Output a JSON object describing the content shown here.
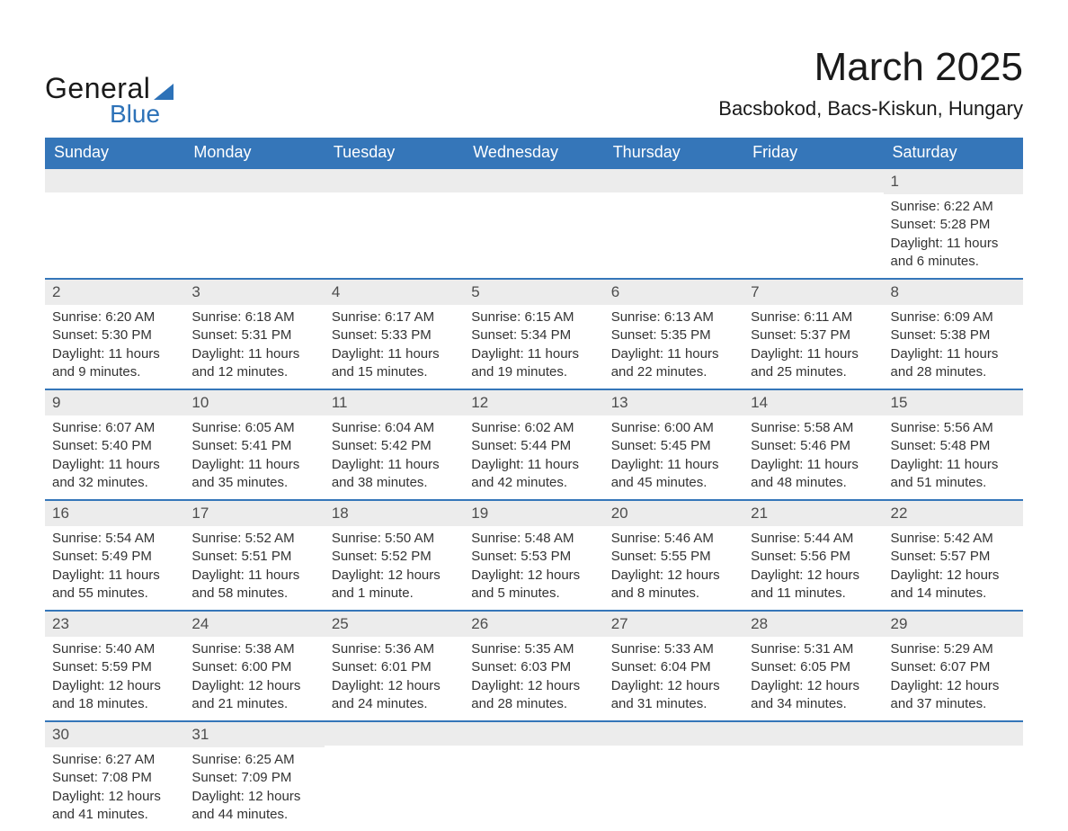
{
  "brand": {
    "word1": "General",
    "word2": "Blue",
    "accent_color": "#2d72b8"
  },
  "header": {
    "title": "March 2025",
    "subtitle": "Bacsbokod, Bacs-Kiskun, Hungary"
  },
  "colors": {
    "header_bg": "#3576b9",
    "header_text": "#ffffff",
    "daynum_bg": "#ececec",
    "row_divider": "#3576b9",
    "body_text": "#333333",
    "page_bg": "#ffffff"
  },
  "weekdays": [
    "Sunday",
    "Monday",
    "Tuesday",
    "Wednesday",
    "Thursday",
    "Friday",
    "Saturday"
  ],
  "labels": {
    "sunrise": "Sunrise:",
    "sunset": "Sunset:",
    "daylight": "Daylight:"
  },
  "weeks": [
    [
      {
        "empty": true
      },
      {
        "empty": true
      },
      {
        "empty": true
      },
      {
        "empty": true
      },
      {
        "empty": true
      },
      {
        "empty": true
      },
      {
        "n": "1",
        "sunrise": "6:22 AM",
        "sunset": "5:28 PM",
        "daylight": "11 hours and 6 minutes."
      }
    ],
    [
      {
        "n": "2",
        "sunrise": "6:20 AM",
        "sunset": "5:30 PM",
        "daylight": "11 hours and 9 minutes."
      },
      {
        "n": "3",
        "sunrise": "6:18 AM",
        "sunset": "5:31 PM",
        "daylight": "11 hours and 12 minutes."
      },
      {
        "n": "4",
        "sunrise": "6:17 AM",
        "sunset": "5:33 PM",
        "daylight": "11 hours and 15 minutes."
      },
      {
        "n": "5",
        "sunrise": "6:15 AM",
        "sunset": "5:34 PM",
        "daylight": "11 hours and 19 minutes."
      },
      {
        "n": "6",
        "sunrise": "6:13 AM",
        "sunset": "5:35 PM",
        "daylight": "11 hours and 22 minutes."
      },
      {
        "n": "7",
        "sunrise": "6:11 AM",
        "sunset": "5:37 PM",
        "daylight": "11 hours and 25 minutes."
      },
      {
        "n": "8",
        "sunrise": "6:09 AM",
        "sunset": "5:38 PM",
        "daylight": "11 hours and 28 minutes."
      }
    ],
    [
      {
        "n": "9",
        "sunrise": "6:07 AM",
        "sunset": "5:40 PM",
        "daylight": "11 hours and 32 minutes."
      },
      {
        "n": "10",
        "sunrise": "6:05 AM",
        "sunset": "5:41 PM",
        "daylight": "11 hours and 35 minutes."
      },
      {
        "n": "11",
        "sunrise": "6:04 AM",
        "sunset": "5:42 PM",
        "daylight": "11 hours and 38 minutes."
      },
      {
        "n": "12",
        "sunrise": "6:02 AM",
        "sunset": "5:44 PM",
        "daylight": "11 hours and 42 minutes."
      },
      {
        "n": "13",
        "sunrise": "6:00 AM",
        "sunset": "5:45 PM",
        "daylight": "11 hours and 45 minutes."
      },
      {
        "n": "14",
        "sunrise": "5:58 AM",
        "sunset": "5:46 PM",
        "daylight": "11 hours and 48 minutes."
      },
      {
        "n": "15",
        "sunrise": "5:56 AM",
        "sunset": "5:48 PM",
        "daylight": "11 hours and 51 minutes."
      }
    ],
    [
      {
        "n": "16",
        "sunrise": "5:54 AM",
        "sunset": "5:49 PM",
        "daylight": "11 hours and 55 minutes."
      },
      {
        "n": "17",
        "sunrise": "5:52 AM",
        "sunset": "5:51 PM",
        "daylight": "11 hours and 58 minutes."
      },
      {
        "n": "18",
        "sunrise": "5:50 AM",
        "sunset": "5:52 PM",
        "daylight": "12 hours and 1 minute."
      },
      {
        "n": "19",
        "sunrise": "5:48 AM",
        "sunset": "5:53 PM",
        "daylight": "12 hours and 5 minutes."
      },
      {
        "n": "20",
        "sunrise": "5:46 AM",
        "sunset": "5:55 PM",
        "daylight": "12 hours and 8 minutes."
      },
      {
        "n": "21",
        "sunrise": "5:44 AM",
        "sunset": "5:56 PM",
        "daylight": "12 hours and 11 minutes."
      },
      {
        "n": "22",
        "sunrise": "5:42 AM",
        "sunset": "5:57 PM",
        "daylight": "12 hours and 14 minutes."
      }
    ],
    [
      {
        "n": "23",
        "sunrise": "5:40 AM",
        "sunset": "5:59 PM",
        "daylight": "12 hours and 18 minutes."
      },
      {
        "n": "24",
        "sunrise": "5:38 AM",
        "sunset": "6:00 PM",
        "daylight": "12 hours and 21 minutes."
      },
      {
        "n": "25",
        "sunrise": "5:36 AM",
        "sunset": "6:01 PM",
        "daylight": "12 hours and 24 minutes."
      },
      {
        "n": "26",
        "sunrise": "5:35 AM",
        "sunset": "6:03 PM",
        "daylight": "12 hours and 28 minutes."
      },
      {
        "n": "27",
        "sunrise": "5:33 AM",
        "sunset": "6:04 PM",
        "daylight": "12 hours and 31 minutes."
      },
      {
        "n": "28",
        "sunrise": "5:31 AM",
        "sunset": "6:05 PM",
        "daylight": "12 hours and 34 minutes."
      },
      {
        "n": "29",
        "sunrise": "5:29 AM",
        "sunset": "6:07 PM",
        "daylight": "12 hours and 37 minutes."
      }
    ],
    [
      {
        "n": "30",
        "sunrise": "6:27 AM",
        "sunset": "7:08 PM",
        "daylight": "12 hours and 41 minutes."
      },
      {
        "n": "31",
        "sunrise": "6:25 AM",
        "sunset": "7:09 PM",
        "daylight": "12 hours and 44 minutes."
      },
      {
        "empty": true
      },
      {
        "empty": true
      },
      {
        "empty": true
      },
      {
        "empty": true
      },
      {
        "empty": true
      }
    ]
  ]
}
